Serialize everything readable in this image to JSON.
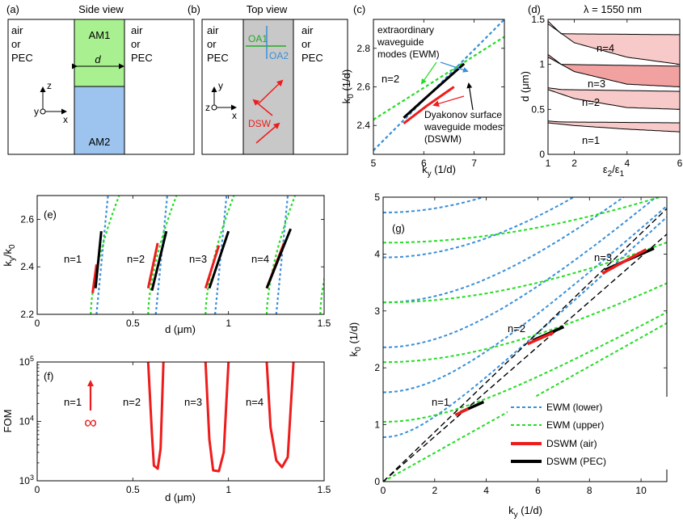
{
  "colors": {
    "ewm_lower": "#3a8fd8",
    "ewm_upper": "#22dd22",
    "dswm_air": "#ee1c1c",
    "dswm_pec": "#000000",
    "am1_fill": "#a8f090",
    "am2_fill": "#9cc4ee",
    "slab_gray": "#c8c8c8",
    "region_fill": "#f7c0c0",
    "region_dark": "#f09090"
  },
  "panel_a": {
    "label": "(a)",
    "title": "Side view",
    "left_text": [
      "air",
      "or",
      "PEC"
    ],
    "right_text": [
      "air",
      "or",
      "PEC"
    ],
    "am1": "AM1",
    "am2": "AM2",
    "d": "d",
    "axes": {
      "z": "z",
      "y": "y",
      "x": "x"
    }
  },
  "panel_b": {
    "label": "(b)",
    "title": "Top view",
    "left_text": [
      "air",
      "or",
      "PEC"
    ],
    "right_text": [
      "air",
      "or",
      "PEC"
    ],
    "oa1": "OA1",
    "oa2": "OA2",
    "dsw": "DSW",
    "axes": {
      "z": "z",
      "y": "y",
      "x": "x"
    }
  },
  "panel_c": {
    "label": "(c)",
    "annot_ewm": [
      "extraordinary",
      "waveguide",
      "modes (EWM)"
    ],
    "annot_n": "n=2",
    "annot_dswm": [
      "Dyakonov surface",
      "waveguide modes",
      "(DSWM)"
    ]
  },
  "panel_d": {
    "label": "(d)",
    "title": "λ = 1550 nm",
    "modes": [
      "n=4",
      "n=3",
      "n=2",
      "n=1"
    ]
  },
  "panel_e": {
    "label": "(e)",
    "modes": [
      "n=1",
      "n=2",
      "n=3",
      "n=4"
    ]
  },
  "panel_f": {
    "label": "(f)",
    "modes": [
      "n=1",
      "n=2",
      "n=3",
      "n=4"
    ],
    "infinity": "∞"
  },
  "panel_g": {
    "label": "(g)",
    "modes": [
      "n=1",
      "n=2",
      "n=3"
    ]
  },
  "legend": [
    "EWM (lower)",
    "EWM (upper)",
    "DSWM (air)",
    "DSWM (PEC)"
  ],
  "chart_data": [
    {
      "id": "c",
      "type": "line",
      "xlabel": "k_y (1/d)",
      "ylabel": "k_0 (1/d)",
      "xlim": [
        5,
        7.6
      ],
      "ylim": [
        2.25,
        2.95
      ],
      "xticks": [
        "5",
        "6",
        "7"
      ],
      "yticks": [
        "2.4",
        "2.6",
        "2.8"
      ],
      "series": [
        {
          "name": "EWM (lower)",
          "points": [
            [
              5,
              2.27
            ],
            [
              7.6,
              2.95
            ]
          ]
        },
        {
          "name": "EWM (upper)",
          "points": [
            [
              5,
              2.43
            ],
            [
              7.6,
              2.86
            ]
          ]
        },
        {
          "name": "DSWM (air)",
          "points": [
            [
              5.6,
              2.41
            ],
            [
              6.05,
              2.5
            ],
            [
              6.6,
              2.6
            ]
          ]
        },
        {
          "name": "DSWM (PEC)",
          "points": [
            [
              5.6,
              2.44
            ],
            [
              6.15,
              2.57
            ],
            [
              6.8,
              2.72
            ]
          ]
        }
      ]
    },
    {
      "id": "d",
      "type": "area",
      "xlabel": "ε2/ε1",
      "ylabel": "d (μm)",
      "xlim": [
        1,
        6
      ],
      "ylim": [
        0,
        1.5
      ],
      "xticks": [
        "1",
        "2",
        "4",
        "6"
      ],
      "yticks": [
        "0",
        "0.5",
        "1",
        "1.5"
      ],
      "bands": [
        {
          "mode": 1,
          "lower": [
            [
              1,
              0.35
            ],
            [
              2,
              0.32
            ],
            [
              4,
              0.28
            ],
            [
              6,
              0.25
            ]
          ],
          "upper": [
            [
              1,
              0.37
            ],
            [
              1.5,
              0.36
            ],
            [
              6,
              0.35
            ]
          ]
        },
        {
          "mode": 2,
          "lower": [
            [
              1,
              0.72
            ],
            [
              2,
              0.62
            ],
            [
              4,
              0.52
            ],
            [
              6,
              0.5
            ]
          ],
          "upper": [
            [
              1,
              0.74
            ],
            [
              1.5,
              0.72
            ],
            [
              6,
              0.7
            ]
          ]
        },
        {
          "mode": 3,
          "lower": [
            [
              1,
              1.08
            ],
            [
              2,
              0.92
            ],
            [
              4,
              0.78
            ],
            [
              6,
              0.75
            ]
          ],
          "upper": [
            [
              1,
              1.11
            ],
            [
              1.5,
              1.0
            ],
            [
              6,
              0.98
            ]
          ]
        },
        {
          "mode": 4,
          "lower": [
            [
              1,
              1.45
            ],
            [
              2,
              1.24
            ],
            [
              4,
              1.08
            ],
            [
              6,
              1.0
            ]
          ],
          "upper": [
            [
              1,
              1.48
            ],
            [
              1.5,
              1.34
            ],
            [
              6,
              1.33
            ]
          ]
        }
      ]
    },
    {
      "id": "e",
      "type": "line",
      "xlabel": "d (μm)",
      "ylabel": "k_y/k_0",
      "xlim": [
        0,
        1.5
      ],
      "ylim": [
        2.2,
        2.7
      ],
      "xticks": [
        "0",
        "0.5",
        "1",
        "1.5"
      ],
      "yticks": [
        "2.2",
        "2.4",
        "2.6"
      ],
      "dswm_air": [
        [
          [
            0.29,
            2.29
          ],
          [
            0.31,
            2.41
          ]
        ],
        [
          [
            0.58,
            2.31
          ],
          [
            0.63,
            2.5
          ]
        ],
        [
          [
            0.88,
            2.31
          ],
          [
            0.95,
            2.49
          ]
        ],
        [
          [
            1.2,
            2.31
          ],
          [
            1.29,
            2.5
          ]
        ]
      ],
      "dswm_pec": [
        [
          [
            0.305,
            2.31
          ],
          [
            0.335,
            2.55
          ]
        ],
        [
          [
            0.6,
            2.3
          ],
          [
            0.675,
            2.55
          ]
        ],
        [
          [
            0.9,
            2.31
          ],
          [
            1.0,
            2.55
          ]
        ],
        [
          [
            1.2,
            2.31
          ],
          [
            1.325,
            2.56
          ]
        ]
      ]
    },
    {
      "id": "f",
      "type": "line",
      "xlabel": "d (μm)",
      "ylabel": "FOM",
      "xlim": [
        0,
        1.5
      ],
      "ylim_log10": [
        3,
        5
      ],
      "xticks": [
        "0",
        "0.5",
        "1",
        "1.5"
      ],
      "yticks": [
        "10^3",
        "10^4",
        "10^5"
      ],
      "curves": [
        {
          "mode": 2,
          "points": [
            [
              0.58,
              100000
            ],
            [
              0.6,
              6000
            ],
            [
              0.61,
              1800
            ],
            [
              0.63,
              1600
            ],
            [
              0.645,
              3500
            ],
            [
              0.66,
              100000
            ]
          ]
        },
        {
          "mode": 3,
          "points": [
            [
              0.88,
              100000
            ],
            [
              0.9,
              5000
            ],
            [
              0.92,
              1500
            ],
            [
              0.95,
              1450
            ],
            [
              0.975,
              3000
            ],
            [
              1.0,
              100000
            ]
          ]
        },
        {
          "mode": 4,
          "points": [
            [
              1.2,
              100000
            ],
            [
              1.22,
              8000
            ],
            [
              1.25,
              2200
            ],
            [
              1.28,
              1700
            ],
            [
              1.31,
              2500
            ],
            [
              1.34,
              100000
            ]
          ]
        }
      ]
    },
    {
      "id": "g",
      "type": "line",
      "xlabel": "k_y (1/d)",
      "ylabel": "k_0 (1/d)",
      "xlim": [
        0,
        11
      ],
      "ylim": [
        0,
        5
      ],
      "xticks": [
        "0",
        "2",
        "4",
        "6",
        "8",
        "10"
      ],
      "yticks": [
        "0",
        "1",
        "2",
        "3",
        "4",
        "5"
      ],
      "ewm_lower_offsets": [
        0.78,
        1.57,
        2.36,
        3.15,
        3.94,
        4.73
      ],
      "ewm_upper_offsets": [
        0.0,
        1.05,
        2.1,
        3.15,
        4.2
      ],
      "dswm_air": [
        [
          2.8,
          1.17,
          3.3,
          1.28
        ],
        [
          5.6,
          2.42,
          6.6,
          2.62
        ],
        [
          8.5,
          3.66,
          10.2,
          4.08
        ]
      ],
      "dswm_pec": [
        [
          3.0,
          1.22,
          3.9,
          1.4
        ],
        [
          5.8,
          2.48,
          7.0,
          2.72
        ],
        [
          8.6,
          3.72,
          10.5,
          4.1
        ]
      ]
    }
  ]
}
